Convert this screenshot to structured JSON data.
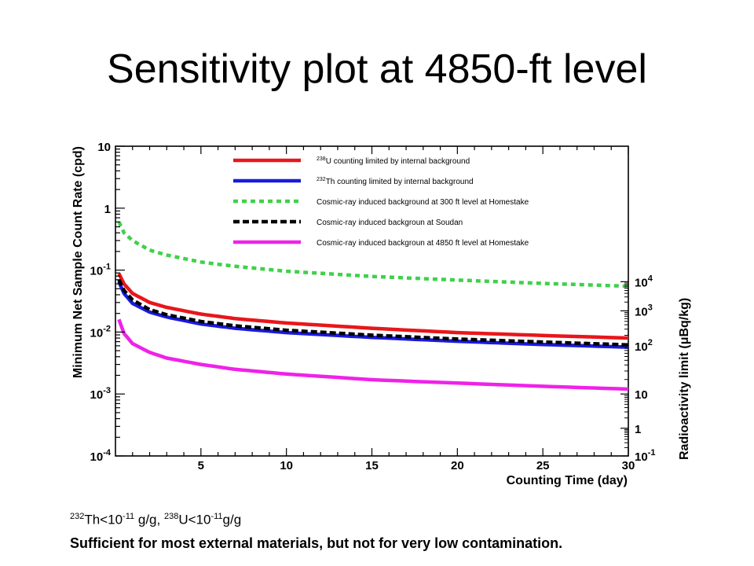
{
  "title": "Sensitivity plot at 4850-ft level",
  "notes": {
    "th_mass": "232",
    "th_sym": "Th<10",
    "th_exp": "-11",
    "th_unit": " g/g, ",
    "u_mass": "238",
    "u_sym": "U<10",
    "u_exp": "-11",
    "u_unit": "g/g",
    "line2": "Sufficient for most external materials, but not for very low contamination."
  },
  "chart_data": {
    "type": "line",
    "xlabel": "Counting Time (day)",
    "ylabel": "Minimum Net Sample Count Rate (cpd)",
    "y2label": "Radioactivity limit (μBq/kg)",
    "xlim": [
      0,
      30
    ],
    "ylim": [
      0.0001,
      10
    ],
    "yscale": "log",
    "x_ticks": [
      "5",
      "10",
      "15",
      "20",
      "25",
      "30"
    ],
    "y_ticks": [
      {
        "base": "10",
        "exp": "-4"
      },
      {
        "base": "10",
        "exp": "-3"
      },
      {
        "base": "10",
        "exp": "-2"
      },
      {
        "base": "10",
        "exp": "-1"
      },
      {
        "base": "1",
        "exp": ""
      },
      {
        "base": "10",
        "exp": ""
      }
    ],
    "y2_ticks": [
      {
        "base": "10",
        "exp": "-1"
      },
      {
        "base": "1",
        "exp": ""
      },
      {
        "base": "10",
        "exp": ""
      },
      {
        "base": "10",
        "exp": "2"
      },
      {
        "base": "10",
        "exp": "3"
      },
      {
        "base": "10",
        "exp": "4"
      }
    ],
    "y2_tick_values": [
      0.0001,
      0.00028,
      0.001,
      0.006,
      0.022,
      0.065
    ],
    "grid": false,
    "legend_position": "top",
    "series": [
      {
        "name": "238U counting limited by internal background",
        "mass": "238",
        "label": "U counting limited by internal background",
        "color": "#e8161b",
        "style": "solid",
        "x": [
          0.2,
          0.5,
          1,
          2,
          3,
          5,
          7,
          10,
          15,
          20,
          25,
          30
        ],
        "y": [
          0.088,
          0.06,
          0.042,
          0.03,
          0.025,
          0.0195,
          0.0165,
          0.014,
          0.0115,
          0.0098,
          0.0088,
          0.008
        ]
      },
      {
        "name": "232Th counting limited by internal background",
        "mass": "232",
        "label": "Th counting limited by internal background",
        "color": "#1a1adf",
        "style": "solid",
        "x": [
          0.2,
          0.5,
          1,
          2,
          3,
          5,
          7,
          10,
          15,
          20,
          25,
          30
        ],
        "y": [
          0.065,
          0.042,
          0.029,
          0.021,
          0.0175,
          0.0135,
          0.0115,
          0.0098,
          0.0082,
          0.0071,
          0.0063,
          0.0057
        ]
      },
      {
        "name": "Cosmic-ray induced background at 300 ft level at Homestake",
        "mass": "",
        "label": "Cosmic-ray induced background at 300 ft level at Homestake",
        "color": "#3fd14a",
        "style": "dotted",
        "x": [
          0.2,
          0.5,
          1,
          2,
          3,
          5,
          7,
          10,
          15,
          20,
          25,
          30
        ],
        "y": [
          0.6,
          0.4,
          0.3,
          0.21,
          0.175,
          0.135,
          0.115,
          0.096,
          0.079,
          0.069,
          0.061,
          0.055
        ]
      },
      {
        "name": "Cosmic-ray induced backgroun at Soudan",
        "mass": "",
        "label": "Cosmic-ray induced backgroun at Soudan",
        "color": "#000000",
        "style": "dashed",
        "x": [
          0.2,
          0.5,
          1,
          2,
          3,
          5,
          7,
          10,
          15,
          20,
          25,
          30
        ],
        "y": [
          0.07,
          0.047,
          0.033,
          0.023,
          0.019,
          0.0148,
          0.0126,
          0.0107,
          0.0089,
          0.0077,
          0.0069,
          0.0062
        ]
      },
      {
        "name": "Cosmic-ray induced backgroun at 4850 ft level at Homestake",
        "mass": "",
        "label": "Cosmic-ray induced backgroun at 4850 ft level at Homestake",
        "color": "#ef22e8",
        "style": "solid",
        "x": [
          0.2,
          0.5,
          1,
          2,
          3,
          5,
          7,
          10,
          15,
          20,
          25,
          30
        ],
        "y": [
          0.016,
          0.0095,
          0.0065,
          0.0047,
          0.0038,
          0.003,
          0.0025,
          0.0021,
          0.0017,
          0.0015,
          0.00133,
          0.0012
        ]
      }
    ]
  }
}
